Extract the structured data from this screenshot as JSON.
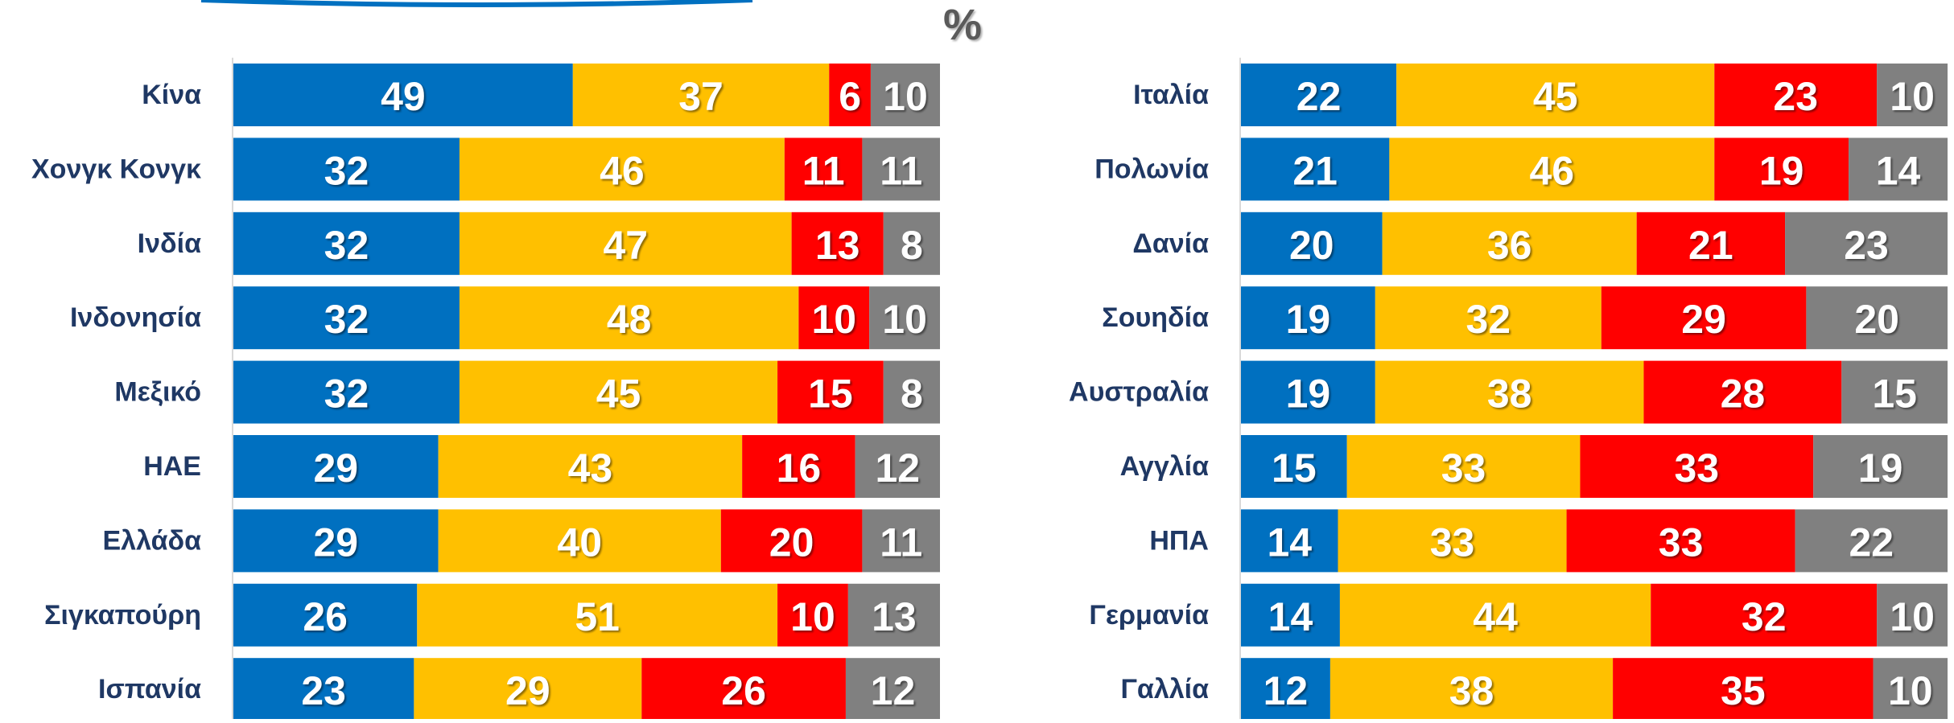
{
  "title": "%",
  "chart_data": [
    {
      "type": "stacked-bar-horizontal",
      "categories": [
        "Κίνα",
        "Χονγκ Κονγκ",
        "Ινδία",
        "Ινδονησία",
        "Μεξικό",
        "ΗΑΕ",
        "Ελλάδα",
        "Σιγκαπούρη",
        "Ισπανία"
      ],
      "series": [
        {
          "color": "#0070c0",
          "values": [
            49,
            32,
            32,
            32,
            32,
            29,
            29,
            26,
            23
          ]
        },
        {
          "color": "#ffc000",
          "values": [
            37,
            46,
            47,
            48,
            45,
            43,
            40,
            51,
            29
          ]
        },
        {
          "color": "#ff0000",
          "values": [
            6,
            11,
            13,
            10,
            15,
            16,
            20,
            10,
            26
          ]
        },
        {
          "color": "#808080",
          "values": [
            10,
            11,
            8,
            10,
            8,
            12,
            11,
            13,
            12
          ]
        }
      ]
    },
    {
      "type": "stacked-bar-horizontal",
      "categories": [
        "Ιταλία",
        "Πολωνία",
        "Δανία",
        "Σουηδία",
        "Αυστραλία",
        "Αγγλία",
        "ΗΠΑ",
        "Γερμανία",
        "Γαλλία"
      ],
      "series": [
        {
          "color": "#0070c0",
          "values": [
            22,
            21,
            20,
            19,
            19,
            15,
            14,
            14,
            12
          ]
        },
        {
          "color": "#ffc000",
          "values": [
            45,
            46,
            36,
            32,
            38,
            33,
            33,
            44,
            38
          ]
        },
        {
          "color": "#ff0000",
          "values": [
            23,
            19,
            21,
            29,
            28,
            33,
            33,
            32,
            35
          ]
        },
        {
          "color": "#808080",
          "values": [
            10,
            14,
            23,
            20,
            15,
            19,
            22,
            10,
            10
          ]
        }
      ]
    }
  ]
}
